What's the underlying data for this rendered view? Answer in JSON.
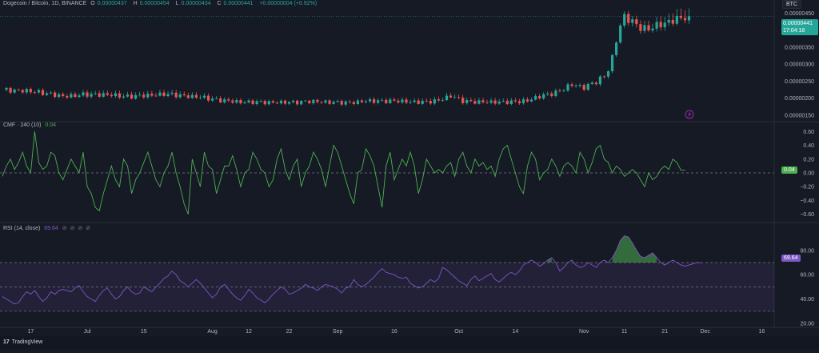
{
  "header": {
    "symbol": "Dogecoin / Bitcoin, 1D, BINANCE",
    "ohlc": [
      {
        "k": "O",
        "v": "0.00000437"
      },
      {
        "k": "H",
        "v": "0.00000454"
      },
      {
        "k": "L",
        "v": "0.00000434"
      },
      {
        "k": "C",
        "v": "0.00000441"
      }
    ],
    "change": "+0.00000004 (+0.92%)"
  },
  "currency_button": "BTC",
  "last_price": {
    "value": "0.00000441",
    "countdown": "17:04:18"
  },
  "colors": {
    "background": "#161a25",
    "up": "#26a69a",
    "down": "#ef5350",
    "cmf_line": "#4caf50",
    "rsi_line": "#7e57c2",
    "rsi_fill": "#4caf50"
  },
  "icons": {
    "lightning": "lightning-icon",
    "logo": "tradingview-logo-icon"
  },
  "chart_data": [
    {
      "type": "candlestick",
      "title": "Dogecoin / Bitcoin, 1D, BINANCE",
      "y_ticks": [
        "0.00000450",
        "0.00000400",
        "0.00000350",
        "0.00000300",
        "0.00000250",
        "0.00000200",
        "0.00000150"
      ],
      "ylim": [
        1.4e-06,
        4.7e-06
      ],
      "x_ticks": [
        "17",
        "Jul",
        "15",
        "Aug",
        "12",
        "22",
        "Sep",
        "16",
        "Oct",
        "14",
        "Nov",
        "11",
        "21",
        "Dec",
        "16"
      ],
      "x_tick_index": [
        7,
        21,
        35,
        52,
        61,
        71,
        83,
        97,
        113,
        127,
        144,
        154,
        164,
        174,
        188
      ],
      "anchors": [
        [
          0,
          2.24e-06
        ],
        [
          5,
          2.22e-06
        ],
        [
          10,
          2.16e-06
        ],
        [
          15,
          2.05e-06
        ],
        [
          20,
          2.1e-06
        ],
        [
          25,
          2.11e-06
        ],
        [
          30,
          2.05e-06
        ],
        [
          35,
          2.07e-06
        ],
        [
          40,
          2.12e-06
        ],
        [
          45,
          2.07e-06
        ],
        [
          50,
          2.01e-06
        ],
        [
          55,
          1.92e-06
        ],
        [
          60,
          1.88e-06
        ],
        [
          65,
          1.88e-06
        ],
        [
          70,
          1.87e-06
        ],
        [
          75,
          1.9e-06
        ],
        [
          80,
          1.89e-06
        ],
        [
          85,
          1.86e-06
        ],
        [
          90,
          1.91e-06
        ],
        [
          95,
          1.92e-06
        ],
        [
          100,
          1.9e-06
        ],
        [
          105,
          1.88e-06
        ],
        [
          108,
          1.94e-06
        ],
        [
          111,
          2.06e-06
        ],
        [
          114,
          1.92e-06
        ],
        [
          118,
          1.88e-06
        ],
        [
          122,
          1.89e-06
        ],
        [
          126,
          1.88e-06
        ],
        [
          130,
          1.93e-06
        ],
        [
          134,
          2.08e-06
        ],
        [
          138,
          2.2e-06
        ],
        [
          141,
          2.4e-06
        ],
        [
          144,
          2.32e-06
        ],
        [
          147,
          2.48e-06
        ],
        [
          149,
          2.65e-06
        ],
        [
          150,
          2.85e-06
        ],
        [
          151,
          3.2e-06
        ],
        [
          152,
          3.7e-06
        ],
        [
          153,
          4.12e-06
        ],
        [
          154,
          4.4e-06
        ],
        [
          156,
          4.25e-06
        ],
        [
          158,
          4.08e-06
        ],
        [
          160,
          4.02e-06
        ],
        [
          162,
          4.15e-06
        ],
        [
          164,
          4.2e-06
        ],
        [
          166,
          4.3e-06
        ],
        [
          168,
          4.35e-06
        ],
        [
          170,
          4.41e-06
        ]
      ],
      "last_index": 170
    },
    {
      "type": "line",
      "title": "CMF · 240 (10)",
      "value_label": "0.04",
      "y_ticks": [
        "0.60",
        "0.40",
        "0.20",
        "0.00",
        "−0.20",
        "−0.40",
        "−0.60"
      ],
      "ylim": [
        -0.65,
        0.65
      ],
      "values": [
        -0.05,
        0.1,
        0.2,
        0.05,
        0.15,
        0.3,
        0.1,
        0.0,
        0.6,
        0.15,
        0.05,
        0.1,
        0.3,
        0.25,
        0.0,
        -0.1,
        0.05,
        0.2,
        0.1,
        0.0,
        0.3,
        -0.2,
        -0.3,
        -0.5,
        -0.55,
        -0.3,
        -0.1,
        0.1,
        -0.1,
        -0.2,
        0.2,
        0.1,
        -0.3,
        -0.1,
        0.0,
        0.15,
        0.3,
        0.1,
        -0.1,
        -0.2,
        0.0,
        0.1,
        0.3,
        0.0,
        -0.2,
        -0.45,
        -0.6,
        0.2,
        0.0,
        -0.2,
        0.3,
        0.1,
        0.05,
        -0.3,
        -0.1,
        0.1,
        0.1,
        0.25,
        0.05,
        -0.2,
        0.0,
        0.05,
        0.3,
        0.2,
        0.05,
        0.0,
        -0.2,
        -0.1,
        0.2,
        0.35,
        0.05,
        -0.1,
        0.1,
        0.2,
        -0.2,
        0.0,
        0.1,
        0.3,
        0.2,
        0.05,
        -0.2,
        0.1,
        0.4,
        0.3,
        0.1,
        -0.1,
        -0.3,
        -0.45,
        0.0,
        0.05,
        0.35,
        0.25,
        0.1,
        -0.2,
        -0.5,
        0.1,
        0.3,
        -0.1,
        0.05,
        0.2,
        0.1,
        0.3,
        0.1,
        -0.3,
        -0.1,
        0.2,
        0.1,
        0.0,
        0.05,
        0.0,
        0.1,
        0.15,
        -0.05,
        0.2,
        0.3,
        0.1,
        0.0,
        0.2,
        0.1,
        0.15,
        0.05,
        0.1,
        -0.05,
        0.2,
        0.35,
        0.4,
        0.2,
        0.0,
        -0.2,
        -0.3,
        0.1,
        0.3,
        0.2,
        -0.1,
        0.0,
        0.05,
        0.2,
        0.1,
        -0.05,
        0.1,
        0.15,
        0.1,
        0.0,
        0.3,
        0.2,
        0.0,
        0.15,
        0.35,
        0.4,
        0.2,
        0.15,
        0.0,
        0.1,
        0.05,
        -0.05,
        0.0,
        0.05,
        0.0,
        -0.1,
        -0.2,
        0.0,
        -0.1,
        -0.05,
        0.05,
        0.1,
        0.05,
        0.2,
        0.15,
        0.04,
        0.04
      ],
      "zero_line": 0
    },
    {
      "type": "area",
      "title": "RSI (14, close)",
      "value_label": "69.64",
      "y_ticks": [
        "80.00",
        "60.00",
        "40.00",
        "20.00"
      ],
      "ylim": [
        20,
        95
      ],
      "bands": [
        30,
        50,
        70
      ],
      "values": [
        42,
        40,
        38,
        36,
        37,
        42,
        46,
        44,
        47,
        42,
        38,
        41,
        46,
        44,
        47,
        48,
        47,
        46,
        49,
        51,
        46,
        42,
        40,
        38,
        43,
        47,
        49,
        44,
        40,
        42,
        47,
        50,
        46,
        44,
        45,
        50,
        48,
        46,
        50,
        53,
        57,
        59,
        63,
        60,
        55,
        53,
        50,
        53,
        56,
        53,
        49,
        45,
        41,
        44,
        50,
        52,
        48,
        44,
        41,
        39,
        43,
        48,
        45,
        41,
        39,
        37,
        40,
        44,
        47,
        50,
        48,
        44,
        45,
        47,
        49,
        52,
        50,
        49,
        47,
        50,
        52,
        51,
        50,
        48,
        45,
        49,
        50,
        56,
        52,
        50,
        52,
        55,
        58,
        62,
        65,
        62,
        61,
        60,
        58,
        57,
        58,
        53,
        51,
        49,
        50,
        53,
        56,
        54,
        57,
        66,
        64,
        61,
        58,
        55,
        53,
        51,
        56,
        59,
        55,
        57,
        59,
        61,
        56,
        54,
        57,
        60,
        62,
        60,
        63,
        68,
        70,
        72,
        70,
        67,
        69,
        72,
        74,
        70,
        63,
        66,
        70,
        72,
        68,
        66,
        67,
        70,
        68,
        66,
        70,
        72,
        70,
        74,
        80,
        88,
        92,
        91,
        86,
        80,
        75,
        74,
        76,
        78,
        74,
        70,
        68,
        70,
        72,
        70,
        68,
        67,
        68,
        69,
        70,
        69.64
      ],
      "overbought_fill_above": 70
    }
  ],
  "footer": {
    "brand": "TradingView",
    "logo": "17"
  },
  "legend_icons": "⊘ ⊘ ⊘ ⊘"
}
